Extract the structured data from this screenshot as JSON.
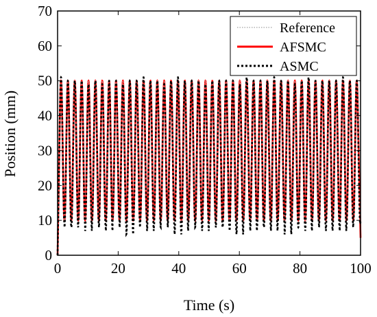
{
  "chart_data": {
    "type": "line",
    "title": "",
    "xlabel": "Time (s)",
    "ylabel": "Position (mm)",
    "xlim": [
      0,
      100
    ],
    "ylim": [
      0,
      70
    ],
    "xticks": [
      "0",
      "20",
      "40",
      "60",
      "80",
      "100"
    ],
    "yticks": [
      "0",
      "10",
      "20",
      "30",
      "40",
      "50",
      "60",
      "70"
    ],
    "grid": false,
    "legend_position": "top-right",
    "signal": {
      "period_s": 2.27,
      "reference_range": [
        10,
        50
      ],
      "start_value": 0,
      "end_value": 5
    },
    "series": [
      {
        "name": "Reference",
        "color": "#b0b0b0",
        "style": "dotted",
        "min": 10,
        "max": 50
      },
      {
        "name": "AFSMC",
        "color": "#ff0000",
        "style": "solid",
        "min": 10,
        "max": 50
      },
      {
        "name": "ASMC",
        "color": "#000000",
        "style": "dotted",
        "min_values": [
          9,
          8,
          8,
          9,
          7,
          9,
          8,
          7,
          10,
          8,
          6,
          8,
          9,
          7,
          8,
          10,
          8,
          6,
          7,
          9,
          8,
          7,
          9,
          8,
          8,
          7,
          6,
          9,
          7,
          8,
          8,
          7,
          9,
          6,
          8,
          8,
          7,
          9,
          8,
          7,
          8,
          7,
          8,
          9
        ],
        "max_values": [
          51,
          50,
          50,
          50,
          49,
          50,
          49,
          50,
          50,
          49,
          50,
          50,
          51,
          50,
          50,
          49,
          50,
          51,
          50,
          50,
          50,
          49,
          50,
          50,
          50,
          50,
          49,
          51,
          50,
          50,
          50,
          51,
          50,
          50,
          49,
          50,
          51,
          50,
          50,
          50,
          50,
          51,
          50,
          50
        ]
      }
    ]
  }
}
